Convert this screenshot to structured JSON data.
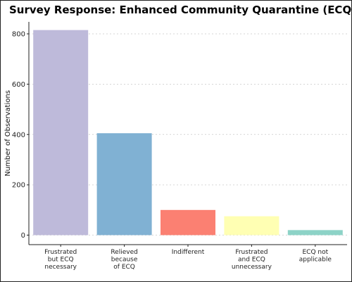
{
  "chart_data": {
    "type": "bar",
    "title": "Survey Response: Enhanced Community Quarantine (ECQ)",
    "xlabel": "",
    "ylabel": "Number of Observations",
    "categories": [
      [
        "Frustrated",
        "but ECQ",
        "necessary"
      ],
      [
        "Relieved",
        "because",
        "of ECQ"
      ],
      [
        "Indifferent"
      ],
      [
        "Frustrated",
        "and ECQ",
        "unnecessary"
      ],
      [
        "ECQ not",
        "applicable"
      ]
    ],
    "values": [
      815,
      405,
      100,
      75,
      20
    ],
    "colors": [
      "#bebada",
      "#80b1d3",
      "#fb8072",
      "#ffffb3",
      "#8dd3c7"
    ],
    "yticks": [
      0,
      200,
      400,
      600,
      800
    ],
    "ylim": [
      0,
      850
    ],
    "grid": "horizontal dotted",
    "legend": "none"
  }
}
